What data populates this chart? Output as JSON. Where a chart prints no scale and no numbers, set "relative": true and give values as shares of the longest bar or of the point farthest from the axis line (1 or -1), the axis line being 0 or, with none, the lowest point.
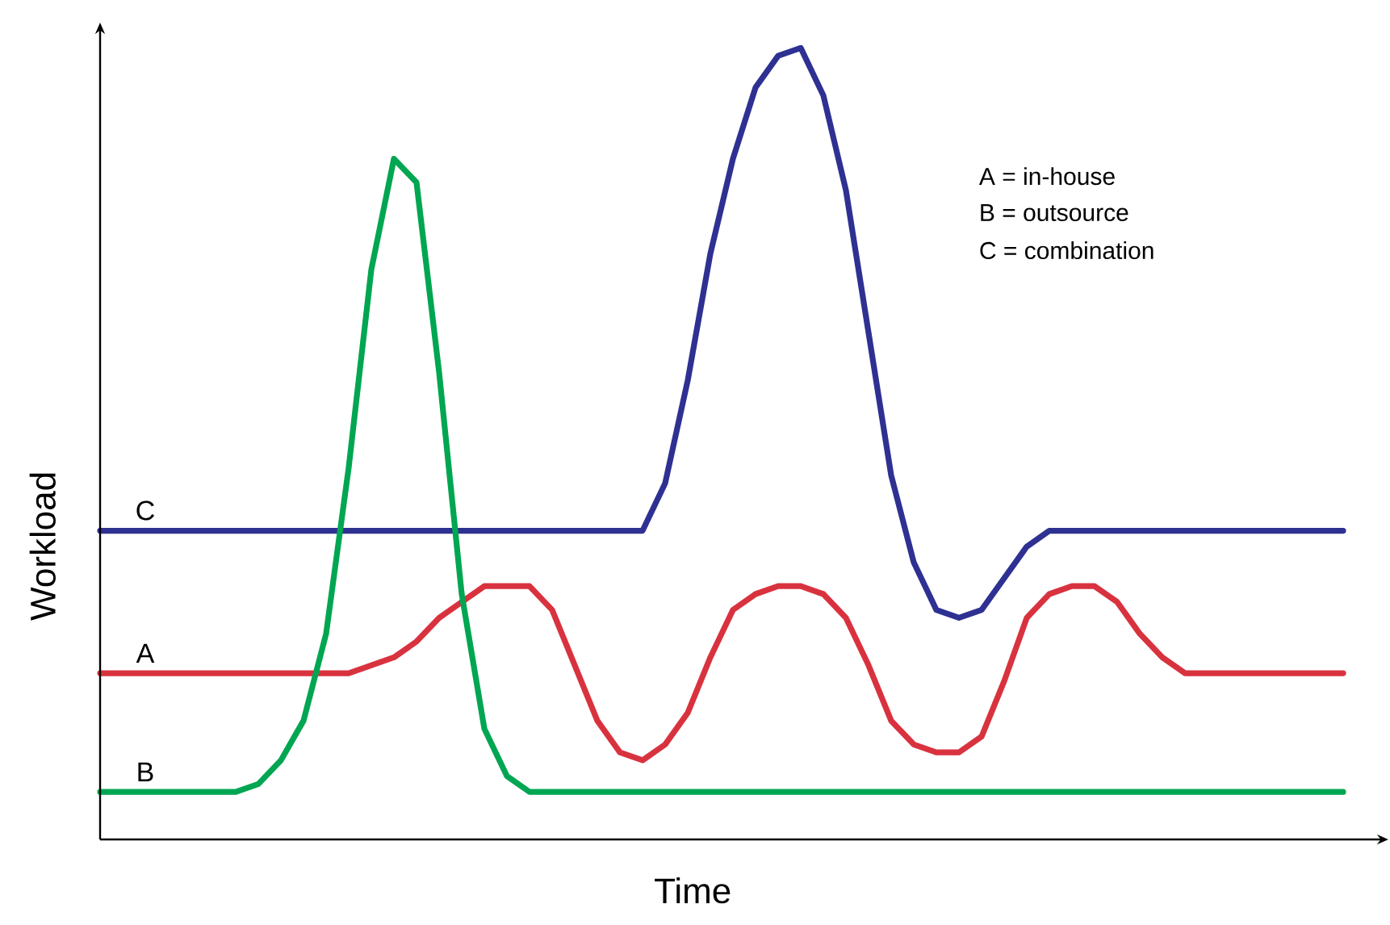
{
  "chart_data": {
    "type": "line",
    "relative": true,
    "xlabel": "Time",
    "ylabel": "Workload",
    "categories": [
      null,
      null,
      null,
      null,
      null,
      null,
      null,
      null,
      null,
      null,
      null,
      null,
      null,
      null,
      null,
      null,
      null,
      null,
      null,
      null,
      null,
      null,
      null,
      null,
      null,
      null,
      null,
      null,
      null,
      null,
      null,
      null,
      null,
      null,
      null,
      null,
      null,
      null,
      null,
      null,
      null,
      null,
      null,
      null,
      null,
      null,
      null,
      null,
      null,
      null,
      null,
      null,
      null,
      null,
      null,
      null
    ],
    "series": [
      {
        "name": "C",
        "color": "#2e3192",
        "values": [
          0.39,
          0.39,
          0.39,
          0.39,
          0.39,
          0.39,
          0.39,
          0.39,
          0.39,
          0.39,
          0.39,
          0.39,
          0.39,
          0.39,
          0.39,
          0.39,
          0.39,
          0.39,
          0.39,
          0.39,
          0.39,
          0.39,
          0.39,
          0.39,
          0.39,
          0.45,
          0.58,
          0.74,
          0.86,
          0.95,
          0.99,
          1.0,
          0.94,
          0.82,
          0.64,
          0.46,
          0.35,
          0.29,
          0.28,
          0.29,
          0.33,
          0.37,
          0.39,
          0.39,
          0.39,
          0.39,
          0.39,
          0.39,
          0.39,
          0.39,
          0.39,
          0.39,
          0.39,
          0.39,
          0.39,
          0.39
        ]
      },
      {
        "name": "A",
        "color": "#d9323f",
        "values": [
          0.21,
          0.21,
          0.21,
          0.21,
          0.21,
          0.21,
          0.21,
          0.21,
          0.21,
          0.21,
          0.21,
          0.21,
          0.22,
          0.23,
          0.25,
          0.28,
          0.3,
          0.32,
          0.32,
          0.32,
          0.29,
          0.22,
          0.15,
          0.11,
          0.1,
          0.12,
          0.16,
          0.23,
          0.29,
          0.31,
          0.32,
          0.32,
          0.31,
          0.28,
          0.22,
          0.15,
          0.12,
          0.11,
          0.11,
          0.13,
          0.2,
          0.28,
          0.31,
          0.32,
          0.32,
          0.3,
          0.26,
          0.23,
          0.21,
          0.21,
          0.21,
          0.21,
          0.21,
          0.21,
          0.21,
          0.21
        ]
      },
      {
        "name": "B",
        "color": "#00a651",
        "values": [
          0.06,
          0.06,
          0.06,
          0.06,
          0.06,
          0.06,
          0.06,
          0.07,
          0.1,
          0.15,
          0.26,
          0.47,
          0.72,
          0.86,
          0.83,
          0.59,
          0.31,
          0.14,
          0.08,
          0.06,
          0.06,
          0.06,
          0.06,
          0.06,
          0.06,
          0.06,
          0.06,
          0.06,
          0.06,
          0.06,
          0.06,
          0.06,
          0.06,
          0.06,
          0.06,
          0.06,
          0.06,
          0.06,
          0.06,
          0.06,
          0.06,
          0.06,
          0.06,
          0.06,
          0.06,
          0.06,
          0.06,
          0.06,
          0.06,
          0.06,
          0.06,
          0.06,
          0.06,
          0.06,
          0.06,
          0.06
        ]
      }
    ],
    "annotations": [
      "A = in-house",
      "B = outsource",
      "C = combination"
    ],
    "marker": "none",
    "line_style": "solid"
  }
}
